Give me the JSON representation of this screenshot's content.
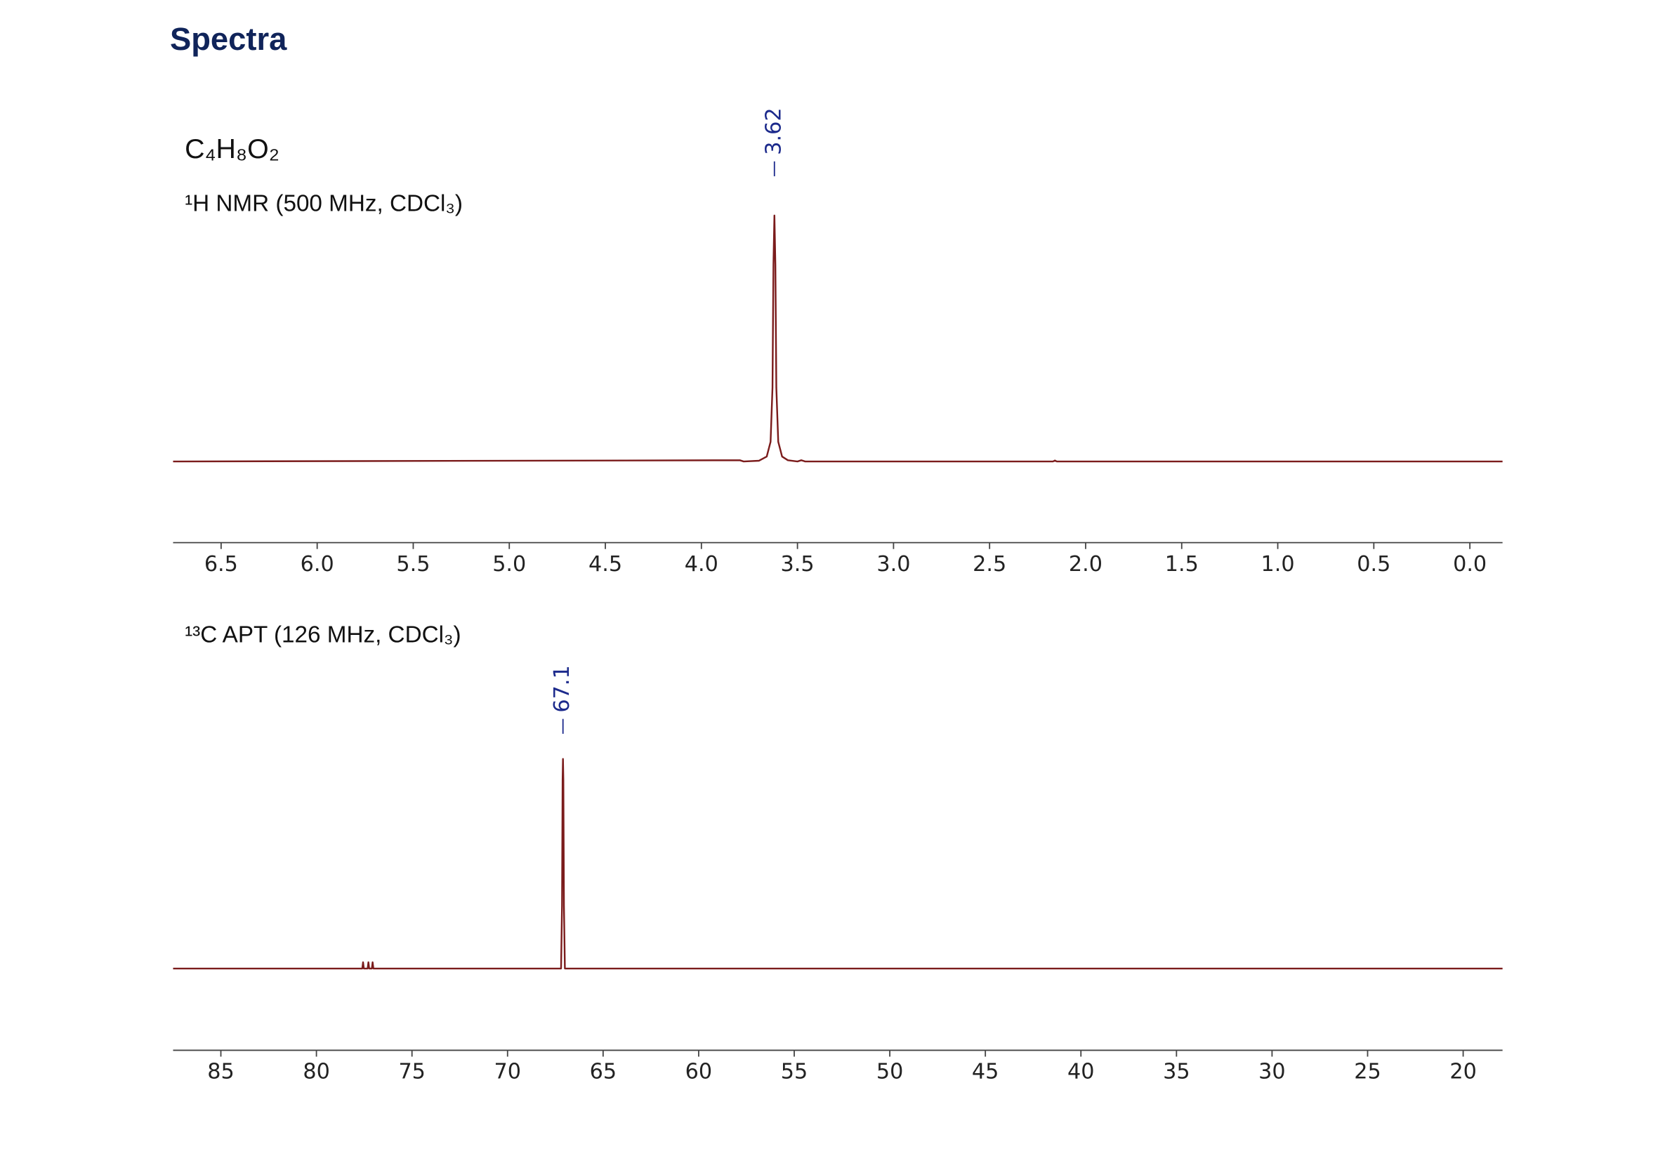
{
  "title": "Spectra",
  "formula": "C₄H₈O₂",
  "chart_data": [
    {
      "type": "line",
      "label": "¹H NMR (500 MHz, CDCl₃)",
      "color": "#7b1c1c",
      "x": [
        6.75,
        3.8,
        3.78,
        3.7,
        3.66,
        3.64,
        3.63,
        3.625,
        3.62,
        3.615,
        3.61,
        3.6,
        3.58,
        3.55,
        3.5,
        3.48,
        3.46,
        2.17,
        2.16,
        2.15,
        -0.17
      ],
      "values": [
        0,
        0.005,
        0,
        0.003,
        0.02,
        0.08,
        0.3,
        0.8,
        1.0,
        0.8,
        0.3,
        0.08,
        0.02,
        0.005,
        0,
        0.005,
        0,
        0,
        0.004,
        0,
        0
      ],
      "peak_labels": [
        3.62
      ],
      "xlim": [
        6.75,
        -0.17
      ],
      "ylim": [
        -0.33,
        1.44
      ],
      "xticks": [
        6.5,
        {
          "value": 6,
          "label": "6.0"
        },
        5.5,
        {
          "value": 5,
          "label": "5.0"
        },
        4.5,
        {
          "value": 4,
          "label": "4.0"
        },
        3.5,
        {
          "value": 3,
          "label": "3.0"
        },
        2.5,
        {
          "value": 2,
          "label": "2.0"
        },
        1.5,
        {
          "value": 1,
          "label": "1.0"
        },
        0.5,
        {
          "value": 0,
          "label": "0.0"
        }
      ]
    },
    {
      "type": "line",
      "label": "¹³C APT (126 MHz, CDCl₃)",
      "color": "#7b1c1c",
      "x": [
        87.5,
        77.6,
        77.56,
        77.52,
        77.32,
        77.28,
        77.24,
        77.1,
        77.06,
        77.02,
        67.2,
        67.15,
        67.12,
        67.1,
        67.08,
        67.05,
        67.0,
        17.94
      ],
      "values": [
        0,
        0,
        0.03,
        0,
        0,
        0.03,
        0,
        0,
        0.03,
        0,
        0,
        0.3,
        0.9,
        1.0,
        0.9,
        0.3,
        0,
        0
      ],
      "peak_labels": [
        67.1
      ],
      "xlim": [
        87.5,
        17.94
      ],
      "ylim": [
        -0.39,
        1.5
      ],
      "xticks": [
        85,
        80,
        75,
        70,
        65,
        60,
        55,
        50,
        45,
        40,
        35,
        30,
        25,
        20
      ]
    }
  ]
}
